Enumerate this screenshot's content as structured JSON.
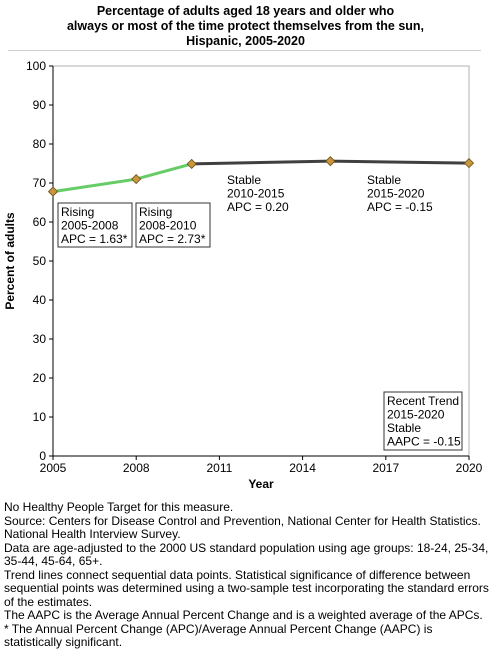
{
  "title_lines": [
    "Percentage of adults aged 18 years and older who",
    "always or most of the time protect themselves from the sun,",
    "Hispanic,  2005-2020"
  ],
  "chart_data": {
    "type": "line",
    "xlabel": "Year",
    "ylabel": "Percent of adults",
    "xlim": [
      2005,
      2020
    ],
    "ylim": [
      0,
      100
    ],
    "x_ticks": [
      2005,
      2008,
      2011,
      2014,
      2017,
      2020
    ],
    "y_ticks": [
      0,
      10,
      20,
      30,
      40,
      50,
      60,
      70,
      80,
      90,
      100
    ],
    "grid": false,
    "points": [
      {
        "x": 2005,
        "y": 67.8
      },
      {
        "x": 2008,
        "y": 71.0
      },
      {
        "x": 2010,
        "y": 74.9
      },
      {
        "x": 2015,
        "y": 75.6
      },
      {
        "x": 2020,
        "y": 75.1
      }
    ],
    "segments": [
      {
        "from": 2005,
        "to": 2008,
        "trend": "rising",
        "color": "#66cc66"
      },
      {
        "from": 2008,
        "to": 2010,
        "trend": "rising",
        "color": "#66cc66"
      },
      {
        "from": 2010,
        "to": 2015,
        "trend": "stable",
        "color": "#404040"
      },
      {
        "from": 2015,
        "to": 2020,
        "trend": "stable",
        "color": "#404040"
      }
    ],
    "annotations": [
      {
        "lines": [
          "Rising",
          "2005-2008",
          "APC =  1.63*"
        ]
      },
      {
        "lines": [
          "Rising",
          "2008-2010",
          "APC =  2.73*"
        ]
      },
      {
        "lines": [
          "Stable",
          "2010-2015",
          "APC =  0.20"
        ]
      },
      {
        "lines": [
          "Stable",
          "2015-2020",
          "APC = -0.15"
        ]
      },
      {
        "lines": [
          "Recent Trend",
          "2015-2020",
          "Stable",
          "AAPC = -0.15"
        ]
      }
    ],
    "marker_color": "#c8963c"
  },
  "notes": [
    "No Healthy People Target for this measure.",
    "Source: Centers for Disease Control and Prevention, National Center for Health Statistics. National Health Interview Survey.",
    "Data are age-adjusted to the 2000 US standard population using age groups: 18-24, 25-34, 35-44, 45-64, 65+.",
    "Trend lines connect sequential data points. Statistical significance of difference between sequential points was determined using a two-sample test incorporating the standard errors of the estimates.",
    "The AAPC is the Average Annual Percent Change and is a weighted average of the APCs.",
    "* The Annual Percent Change (APC)/Average Annual Percent Change (AAPC) is statistically significant."
  ]
}
